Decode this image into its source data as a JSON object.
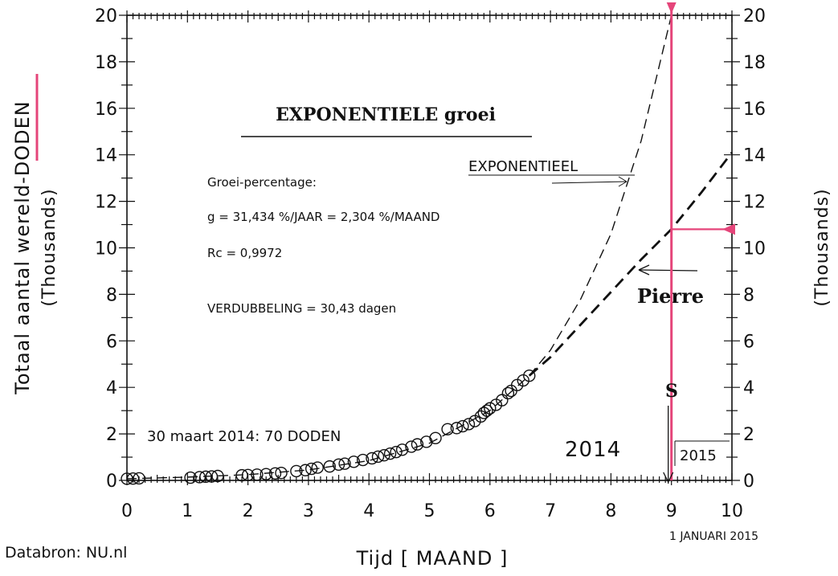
{
  "chart_data": {
    "type": "scatter",
    "title": "EXPONENTIELE groei",
    "xlabel": "Tijd [ MAAND ]",
    "ylabel": "Totaal aantal wereld-DODEN",
    "ylabel_units": "(Thousands)",
    "ylabel_right": "(Thousands)",
    "xlim": [
      0,
      10
    ],
    "ylim": [
      0,
      20
    ],
    "x_ticks": [
      "0",
      "1",
      "2",
      "3",
      "4",
      "5",
      "6",
      "7",
      "8",
      "9",
      "10"
    ],
    "y_ticks": [
      "0",
      "2",
      "4",
      "6",
      "8",
      "10",
      "12",
      "14",
      "16",
      "18",
      "20"
    ],
    "grid": false,
    "series": [
      {
        "style": "open-circles",
        "x": [
          0.0,
          0.1,
          0.2,
          1.05,
          1.2,
          1.3,
          1.4,
          1.5,
          1.9,
          2.0,
          2.15,
          2.3,
          2.45,
          2.55,
          2.8,
          2.95,
          3.05,
          3.15,
          3.35,
          3.5,
          3.6,
          3.75,
          3.9,
          4.05,
          4.15,
          4.25,
          4.35,
          4.45,
          4.55,
          4.7,
          4.8,
          4.95,
          5.1,
          5.3,
          5.45,
          5.55,
          5.65,
          5.75,
          5.85,
          5.9,
          5.95,
          6.0,
          6.1,
          6.2,
          6.3,
          6.35,
          6.45,
          6.55,
          6.65
        ],
        "y": [
          0.07,
          0.08,
          0.09,
          0.12,
          0.14,
          0.16,
          0.17,
          0.19,
          0.22,
          0.23,
          0.25,
          0.27,
          0.3,
          0.32,
          0.4,
          0.44,
          0.5,
          0.55,
          0.6,
          0.68,
          0.72,
          0.8,
          0.88,
          0.95,
          1.02,
          1.08,
          1.15,
          1.22,
          1.32,
          1.45,
          1.55,
          1.66,
          1.82,
          2.2,
          2.25,
          2.33,
          2.42,
          2.55,
          2.75,
          2.9,
          3.0,
          3.1,
          3.25,
          3.45,
          3.75,
          3.85,
          4.1,
          4.3,
          4.5
        ]
      },
      {
        "name": "EXPONENTIEEL",
        "style": "dashed-thin",
        "x": [
          0,
          1,
          2,
          3,
          4,
          5,
          6,
          6.65,
          7,
          7.5,
          8,
          8.5,
          9
        ],
        "y": [
          0.07,
          0.14,
          0.25,
          0.45,
          0.85,
          1.6,
          3.0,
          4.5,
          5.6,
          7.8,
          10.6,
          14.6,
          20.0
        ]
      },
      {
        "name": "Pierre",
        "style": "dashed-thick",
        "x": [
          6.65,
          7,
          7.5,
          8,
          8.5,
          9,
          9.5,
          10
        ],
        "y": [
          4.5,
          5.3,
          6.7,
          8.1,
          9.5,
          10.8,
          12.4,
          14.1
        ]
      }
    ],
    "annotations": [
      {
        "text": "Groei-percentage:"
      },
      {
        "text": "g = 31,434 %/JAAR = 2,304 %/MAAND"
      },
      {
        "text": "Rc = 0,9972"
      },
      {
        "text": "VERDUBBELING = 30,43 dagen"
      },
      {
        "text": "30 maart 2014: 70 DODEN"
      },
      {
        "text": "2014"
      },
      {
        "text": "2015"
      },
      {
        "text": "S"
      },
      {
        "text": "1 JANUARI 2015"
      },
      {
        "text": "Databron: NU.nl"
      }
    ],
    "marker_x": 9,
    "marker_y": 10.8
  },
  "colors": {
    "marker": "#e5457a",
    "ink": "#111111"
  }
}
